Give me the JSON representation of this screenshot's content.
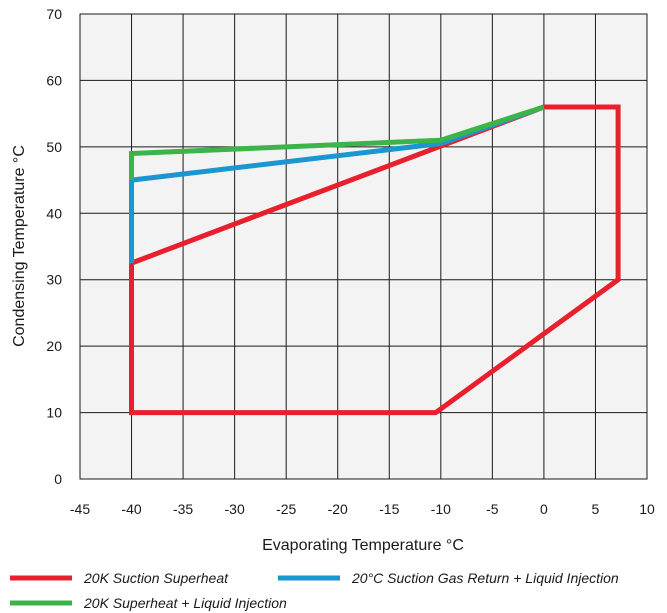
{
  "chart_data": {
    "type": "line",
    "title": "",
    "xlabel": "Evaporating Temperature °C",
    "ylabel": "Condensing Temperature °C",
    "xlim": [
      -45,
      10
    ],
    "ylim": [
      0,
      70
    ],
    "xticks": [
      "-45",
      "-40",
      "-35",
      "-30",
      "-25",
      "-20",
      "-15",
      "-10",
      "-5",
      "0",
      "5",
      "10"
    ],
    "yticks": [
      "0",
      "10",
      "20",
      "30",
      "40",
      "50",
      "60",
      "70"
    ],
    "grid": true,
    "legend_position": "bottom",
    "series": [
      {
        "name": "20K Suction Superheat",
        "color": "#e8202e",
        "points": [
          [
            -40,
            32.5
          ],
          [
            -40,
            10
          ],
          [
            -10.5,
            10
          ],
          [
            7.2,
            30
          ],
          [
            7.2,
            56
          ],
          [
            0,
            56
          ],
          [
            -40,
            32.5
          ]
        ]
      },
      {
        "name": "20°C Suction Gas Return + Liquid Injection",
        "color": "#1a96d0",
        "points": [
          [
            -40,
            32.5
          ],
          [
            -40,
            45
          ],
          [
            -10,
            50.5
          ],
          [
            0,
            56
          ]
        ]
      },
      {
        "name": "20K Superheat + Liquid Injection",
        "color": "#3db44a",
        "points": [
          [
            -40,
            45
          ],
          [
            -40,
            49
          ],
          [
            -10,
            51
          ],
          [
            0,
            56
          ]
        ]
      }
    ]
  }
}
